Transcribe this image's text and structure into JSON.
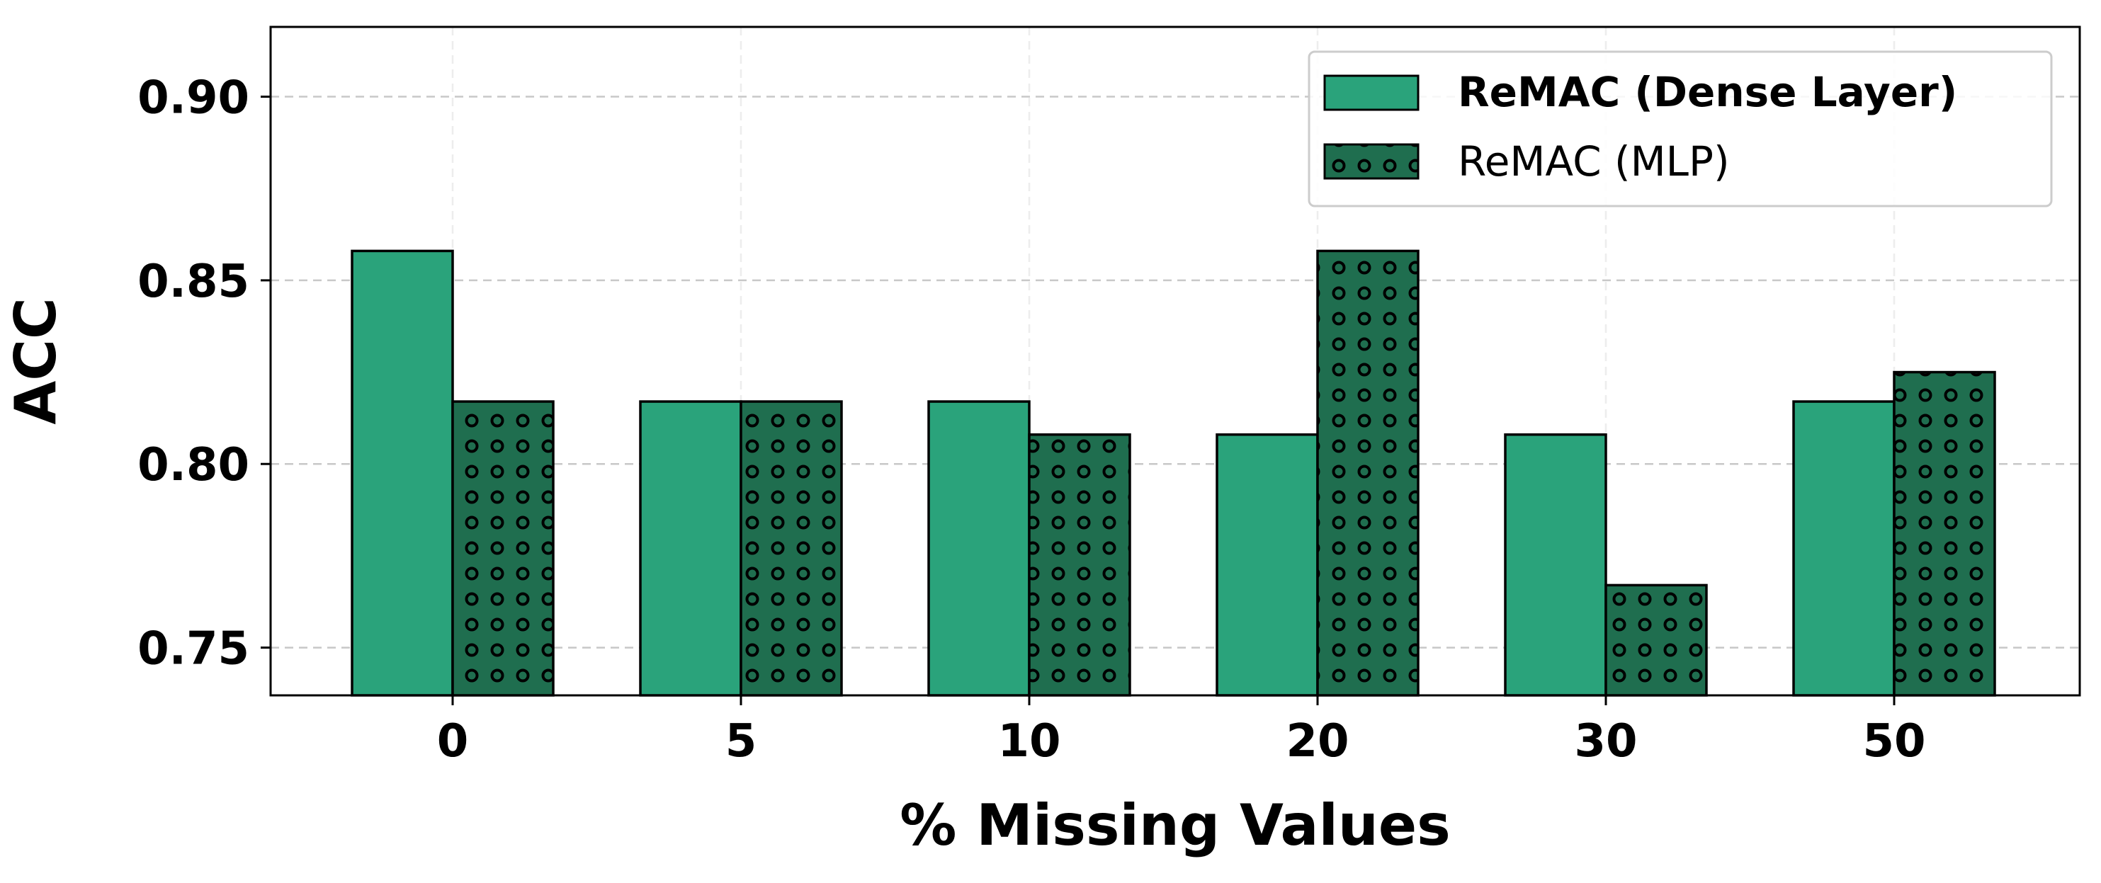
{
  "chart_data": {
    "type": "bar",
    "title": "",
    "xlabel": "% Missing Values",
    "ylabel": "ACC",
    "categories": [
      "0",
      "5",
      "10",
      "20",
      "30",
      "50"
    ],
    "series": [
      {
        "name": "ReMAC (Dense Layer)",
        "values": [
          0.858,
          0.817,
          0.817,
          0.808,
          0.808,
          0.817
        ],
        "color": "#2aa37b",
        "pattern": "solid"
      },
      {
        "name": "ReMAC (MLP)",
        "values": [
          0.817,
          0.817,
          0.808,
          0.858,
          0.767,
          0.825
        ],
        "color": "#1f6e4f",
        "pattern": "dots"
      }
    ],
    "ylim": [
      0.737,
      0.919
    ],
    "yticks": [
      0.75,
      0.8,
      0.85,
      0.9
    ],
    "ytick_labels": [
      "0.75",
      "0.80",
      "0.85",
      "0.90"
    ],
    "grid": true,
    "legend": "top-right"
  }
}
